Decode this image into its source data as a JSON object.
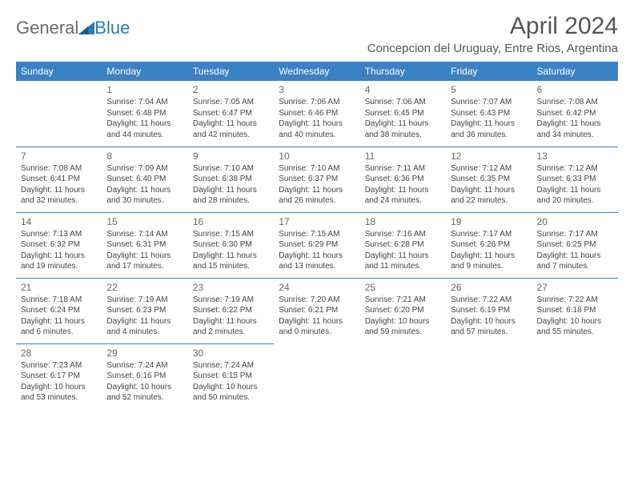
{
  "logo": {
    "part1": "General",
    "part2": "Blue"
  },
  "title": "April 2024",
  "location": "Concepcion del Uruguay, Entre Rios, Argentina",
  "colors": {
    "header_bg": "#3b82c4",
    "header_text": "#ffffff",
    "cell_border": "#3b82c4",
    "body_text": "#444444",
    "title_text": "#555555",
    "logo_gray": "#6b6b6b",
    "logo_blue": "#2b7ab8",
    "page_bg": "#ffffff"
  },
  "weekdays": [
    "Sunday",
    "Monday",
    "Tuesday",
    "Wednesday",
    "Thursday",
    "Friday",
    "Saturday"
  ],
  "leading_blanks": 1,
  "days": [
    {
      "n": 1,
      "sr": "7:04 AM",
      "ss": "6:48 PM",
      "dl": "11 hours and 44 minutes."
    },
    {
      "n": 2,
      "sr": "7:05 AM",
      "ss": "6:47 PM",
      "dl": "11 hours and 42 minutes."
    },
    {
      "n": 3,
      "sr": "7:06 AM",
      "ss": "6:46 PM",
      "dl": "11 hours and 40 minutes."
    },
    {
      "n": 4,
      "sr": "7:06 AM",
      "ss": "6:45 PM",
      "dl": "11 hours and 38 minutes."
    },
    {
      "n": 5,
      "sr": "7:07 AM",
      "ss": "6:43 PM",
      "dl": "11 hours and 36 minutes."
    },
    {
      "n": 6,
      "sr": "7:08 AM",
      "ss": "6:42 PM",
      "dl": "11 hours and 34 minutes."
    },
    {
      "n": 7,
      "sr": "7:08 AM",
      "ss": "6:41 PM",
      "dl": "11 hours and 32 minutes."
    },
    {
      "n": 8,
      "sr": "7:09 AM",
      "ss": "6:40 PM",
      "dl": "11 hours and 30 minutes."
    },
    {
      "n": 9,
      "sr": "7:10 AM",
      "ss": "6:38 PM",
      "dl": "11 hours and 28 minutes."
    },
    {
      "n": 10,
      "sr": "7:10 AM",
      "ss": "6:37 PM",
      "dl": "11 hours and 26 minutes."
    },
    {
      "n": 11,
      "sr": "7:11 AM",
      "ss": "6:36 PM",
      "dl": "11 hours and 24 minutes."
    },
    {
      "n": 12,
      "sr": "7:12 AM",
      "ss": "6:35 PM",
      "dl": "11 hours and 22 minutes."
    },
    {
      "n": 13,
      "sr": "7:12 AM",
      "ss": "6:33 PM",
      "dl": "11 hours and 20 minutes."
    },
    {
      "n": 14,
      "sr": "7:13 AM",
      "ss": "6:32 PM",
      "dl": "11 hours and 19 minutes."
    },
    {
      "n": 15,
      "sr": "7:14 AM",
      "ss": "6:31 PM",
      "dl": "11 hours and 17 minutes."
    },
    {
      "n": 16,
      "sr": "7:15 AM",
      "ss": "6:30 PM",
      "dl": "11 hours and 15 minutes."
    },
    {
      "n": 17,
      "sr": "7:15 AM",
      "ss": "6:29 PM",
      "dl": "11 hours and 13 minutes."
    },
    {
      "n": 18,
      "sr": "7:16 AM",
      "ss": "6:28 PM",
      "dl": "11 hours and 11 minutes."
    },
    {
      "n": 19,
      "sr": "7:17 AM",
      "ss": "6:26 PM",
      "dl": "11 hours and 9 minutes."
    },
    {
      "n": 20,
      "sr": "7:17 AM",
      "ss": "6:25 PM",
      "dl": "11 hours and 7 minutes."
    },
    {
      "n": 21,
      "sr": "7:18 AM",
      "ss": "6:24 PM",
      "dl": "11 hours and 6 minutes."
    },
    {
      "n": 22,
      "sr": "7:19 AM",
      "ss": "6:23 PM",
      "dl": "11 hours and 4 minutes."
    },
    {
      "n": 23,
      "sr": "7:19 AM",
      "ss": "6:22 PM",
      "dl": "11 hours and 2 minutes."
    },
    {
      "n": 24,
      "sr": "7:20 AM",
      "ss": "6:21 PM",
      "dl": "11 hours and 0 minutes."
    },
    {
      "n": 25,
      "sr": "7:21 AM",
      "ss": "6:20 PM",
      "dl": "10 hours and 59 minutes."
    },
    {
      "n": 26,
      "sr": "7:22 AM",
      "ss": "6:19 PM",
      "dl": "10 hours and 57 minutes."
    },
    {
      "n": 27,
      "sr": "7:22 AM",
      "ss": "6:18 PM",
      "dl": "10 hours and 55 minutes."
    },
    {
      "n": 28,
      "sr": "7:23 AM",
      "ss": "6:17 PM",
      "dl": "10 hours and 53 minutes."
    },
    {
      "n": 29,
      "sr": "7:24 AM",
      "ss": "6:16 PM",
      "dl": "10 hours and 52 minutes."
    },
    {
      "n": 30,
      "sr": "7:24 AM",
      "ss": "6:15 PM",
      "dl": "10 hours and 50 minutes."
    }
  ],
  "labels": {
    "sunrise": "Sunrise:",
    "sunset": "Sunset:",
    "daylight": "Daylight:"
  }
}
